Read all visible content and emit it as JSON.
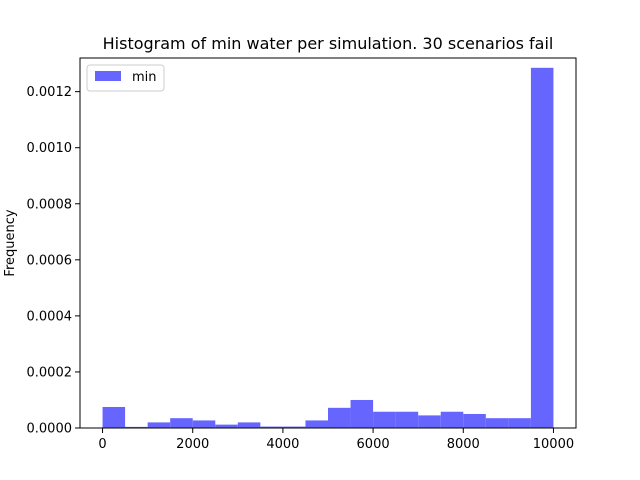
{
  "chart_data": {
    "type": "bar",
    "title": "Histogram of min water per simulation.  30 scenarios fail",
    "xlabel": "",
    "ylabel": "Frequency",
    "xlim": [
      -500,
      10500
    ],
    "ylim": [
      0,
      0.00132
    ],
    "xticks": [
      {
        "value": 0,
        "label": "0"
      },
      {
        "value": 2000,
        "label": "2000"
      },
      {
        "value": 4000,
        "label": "4000"
      },
      {
        "value": 6000,
        "label": "6000"
      },
      {
        "value": 8000,
        "label": "8000"
      },
      {
        "value": 10000,
        "label": "10000"
      }
    ],
    "yticks": [
      {
        "value": 0,
        "label": "0.0000"
      },
      {
        "value": 0.0002,
        "label": "0.0002"
      },
      {
        "value": 0.0004,
        "label": "0.0004"
      },
      {
        "value": 0.0006,
        "label": "0.0006"
      },
      {
        "value": 0.0008,
        "label": "0.0008"
      },
      {
        "value": 0.001,
        "label": "0.0010"
      },
      {
        "value": 0.0012,
        "label": "0.0012"
      }
    ],
    "bin_width": 500,
    "bins": [
      {
        "start": 0,
        "value": 7.5e-05
      },
      {
        "start": 500,
        "value": 4e-06
      },
      {
        "start": 1000,
        "value": 2e-05
      },
      {
        "start": 1500,
        "value": 3.5e-05
      },
      {
        "start": 2000,
        "value": 2.7e-05
      },
      {
        "start": 2500,
        "value": 1.2e-05
      },
      {
        "start": 3000,
        "value": 2e-05
      },
      {
        "start": 3500,
        "value": 5e-06
      },
      {
        "start": 4000,
        "value": 5e-06
      },
      {
        "start": 4500,
        "value": 2.7e-05
      },
      {
        "start": 5000,
        "value": 7.2e-05
      },
      {
        "start": 5500,
        "value": 0.0001
      },
      {
        "start": 6000,
        "value": 5.8e-05
      },
      {
        "start": 6500,
        "value": 5.8e-05
      },
      {
        "start": 7000,
        "value": 4.5e-05
      },
      {
        "start": 7500,
        "value": 5.8e-05
      },
      {
        "start": 8000,
        "value": 5e-05
      },
      {
        "start": 8500,
        "value": 3.5e-05
      },
      {
        "start": 9000,
        "value": 3.5e-05
      },
      {
        "start": 9500,
        "value": 0.001285
      }
    ],
    "series": [
      {
        "name": "min",
        "color": "#6666ff"
      }
    ],
    "legend": {
      "placement": "upper-left",
      "label": "min"
    },
    "grid": false
  }
}
